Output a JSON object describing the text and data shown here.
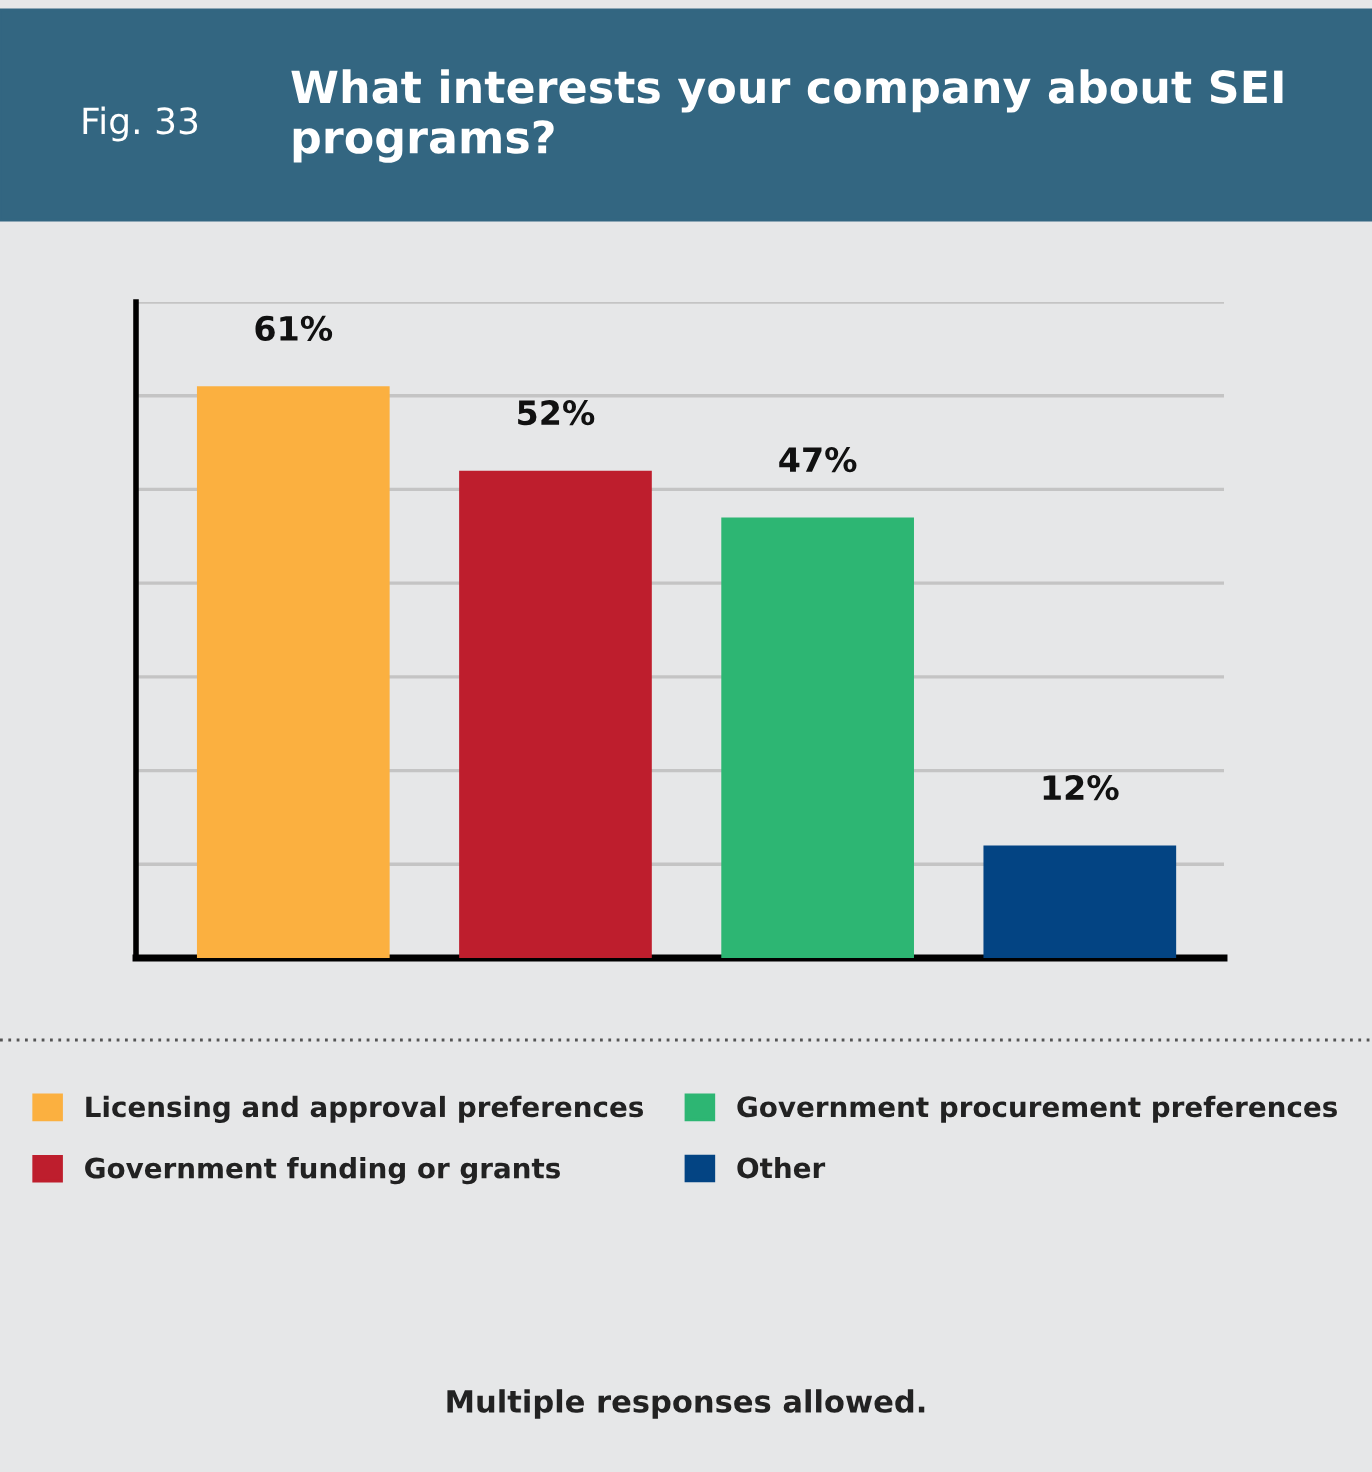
{
  "chart_data": {
    "type": "bar",
    "subtitle": "Fig. 33",
    "title": "What interests your company about SEI programs?",
    "categories": [
      null
    ],
    "series": [
      {
        "name": "Licensing and approval preferences",
        "color": "#fbb040",
        "values": [
          61
        ],
        "value_labels": [
          "61%"
        ]
      },
      {
        "name": "Government funding or grants",
        "color": "#be1e2d",
        "values": [
          52
        ],
        "value_labels": [
          "52%"
        ]
      },
      {
        "name": "Government procurement preferences",
        "color": "#2db673",
        "values": [
          47
        ],
        "value_labels": [
          "47%"
        ]
      },
      {
        "name": "Other",
        "color": "#034483",
        "values": [
          12
        ],
        "value_labels": [
          "12%"
        ]
      }
    ],
    "ylim": [
      0,
      70
    ],
    "yticks": [
      {
        "value": 10,
        "label": null
      },
      {
        "value": 20,
        "label": null
      },
      {
        "value": 30,
        "label": null
      },
      {
        "value": 40,
        "label": null
      },
      {
        "value": 50,
        "label": null
      },
      {
        "value": 60,
        "label": null
      },
      {
        "value": 70,
        "label": null
      }
    ],
    "grid": "y",
    "legend": "bottom",
    "annotations": [
      "Multiple responses allowed."
    ]
  }
}
